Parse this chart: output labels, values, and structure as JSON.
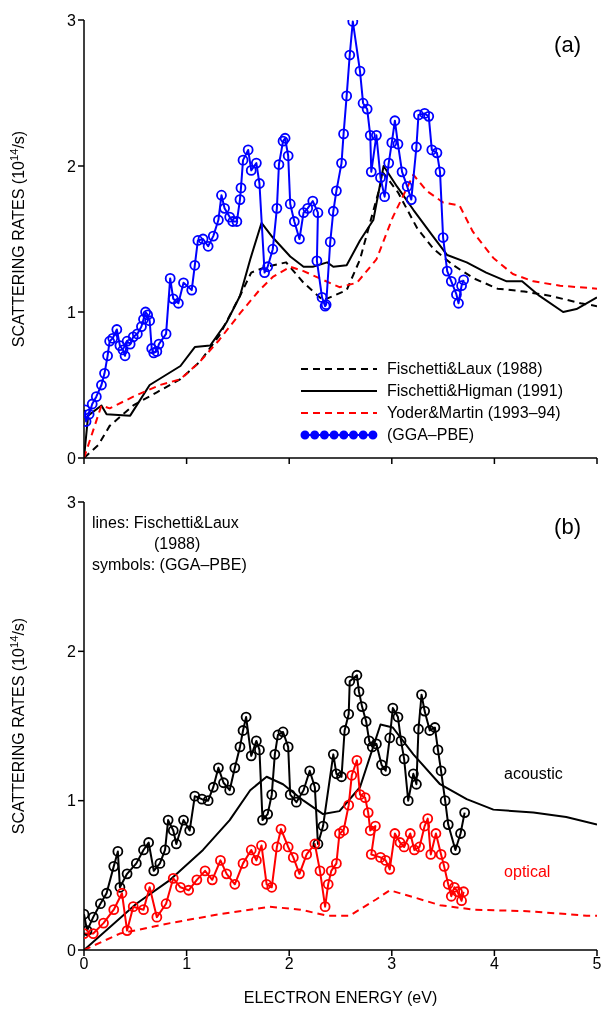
{
  "chart_data": [
    {
      "type": "line",
      "ylabel": "SCATTERING RATES (10$^{14}$/s)",
      "xlim": [
        0,
        5
      ],
      "xticks": [
        0,
        1,
        2,
        3,
        4,
        5
      ],
      "ylim": [
        0,
        3
      ],
      "yticks": [
        0,
        1,
        2,
        3
      ],
      "tick_labels": "y",
      "legend": "bottom right",
      "annotations": [
        "(a)"
      ],
      "series": [
        {
          "name": "Fischetti&Laux (1988)",
          "color": "#000000",
          "line_style": "dashed",
          "marker": "none",
          "x": [
            0,
            0.14,
            0.25,
            0.48,
            0.71,
            0.94,
            1.13,
            1.32,
            1.52,
            1.63,
            1.78,
            1.97,
            2.14,
            2.33,
            2.56,
            2.69,
            2.85,
            2.92,
            3.06,
            3.25,
            3.41,
            3.6,
            3.8,
            4.03,
            4.29,
            4.55,
            4.84,
            5.0
          ],
          "values": [
            0,
            0.09,
            0.22,
            0.36,
            0.45,
            0.54,
            0.66,
            0.84,
            1.11,
            1.27,
            1.31,
            1.34,
            1.2,
            1.08,
            1.15,
            1.36,
            1.77,
            1.95,
            1.82,
            1.57,
            1.43,
            1.32,
            1.23,
            1.16,
            1.14,
            1.11,
            1.06,
            1.04
          ]
        },
        {
          "name": "Fischetti&Higman (1991)",
          "color": "#000000",
          "line_style": "solid",
          "marker": "none",
          "x": [
            0,
            0.04,
            0.17,
            0.22,
            0.45,
            0.64,
            0.94,
            1.08,
            1.23,
            1.39,
            1.52,
            1.62,
            1.73,
            1.84,
            2.01,
            2.14,
            2.23,
            2.37,
            2.43,
            2.56,
            2.69,
            2.82,
            2.92,
            3.05,
            3.21,
            3.4,
            3.54,
            3.73,
            3.92,
            4.12,
            4.27,
            4.44,
            4.67,
            4.8,
            5.0
          ],
          "values": [
            0,
            0.29,
            0.36,
            0.3,
            0.29,
            0.5,
            0.63,
            0.76,
            0.77,
            0.93,
            1.11,
            1.36,
            1.61,
            1.51,
            1.38,
            1.31,
            1.31,
            1.34,
            1.31,
            1.32,
            1.49,
            1.63,
            2.0,
            1.86,
            1.7,
            1.52,
            1.39,
            1.34,
            1.27,
            1.21,
            1.21,
            1.11,
            1.0,
            1.02,
            1.1
          ]
        },
        {
          "name": "Yoder&Martin (1993–94)",
          "color": "#ff0000",
          "line_style": "dashed",
          "marker": "none",
          "x": [
            0,
            0.17,
            0.25,
            0.51,
            0.74,
            0.94,
            1.13,
            1.32,
            1.52,
            1.71,
            1.84,
            2.01,
            2.14,
            2.33,
            2.49,
            2.66,
            2.85,
            3.01,
            3.21,
            3.34,
            3.5,
            3.66,
            3.79,
            3.99,
            4.18,
            4.38,
            4.64,
            5.0
          ],
          "values": [
            0,
            0.36,
            0.34,
            0.43,
            0.5,
            0.54,
            0.66,
            0.81,
            0.99,
            1.15,
            1.24,
            1.31,
            1.28,
            1.22,
            1.17,
            1.2,
            1.36,
            1.65,
            1.94,
            1.83,
            1.75,
            1.73,
            1.55,
            1.37,
            1.26,
            1.21,
            1.18,
            1.16
          ]
        },
        {
          "name": "(GGA–PBE)",
          "color": "#0000ff",
          "line_style": "solid",
          "marker": "circle",
          "x": [
            0.01,
            0.02,
            0.05,
            0.08,
            0.12,
            0.17,
            0.2,
            0.23,
            0.25,
            0.28,
            0.32,
            0.35,
            0.38,
            0.4,
            0.42,
            0.45,
            0.48,
            0.52,
            0.56,
            0.58,
            0.6,
            0.62,
            0.64,
            0.66,
            0.68,
            0.71,
            0.73,
            0.8,
            0.84,
            0.87,
            0.92,
            0.97,
            1.05,
            1.08,
            1.11,
            1.16,
            1.21,
            1.26,
            1.31,
            1.34,
            1.37,
            1.42,
            1.45,
            1.49,
            1.52,
            1.53,
            1.55,
            1.6,
            1.63,
            1.68,
            1.71,
            1.76,
            1.79,
            1.84,
            1.88,
            1.9,
            1.94,
            1.96,
            1.99,
            2.01,
            2.05,
            2.1,
            2.14,
            2.18,
            2.23,
            2.28,
            2.27,
            2.32,
            2.35,
            2.36,
            2.4,
            2.43,
            2.46,
            2.51,
            2.53,
            2.56,
            2.59,
            2.62,
            2.69,
            2.72,
            2.76,
            2.79,
            2.8,
            2.85,
            2.89,
            2.93,
            2.97,
            3.0,
            3.03,
            3.06,
            3.1,
            3.15,
            3.19,
            3.24,
            3.26,
            3.32,
            3.36,
            3.39,
            3.44,
            3.47,
            3.5,
            3.54,
            3.58,
            3.63,
            3.65,
            3.68,
            3.7
          ],
          "values": [
            0.33,
            0.25,
            0.3,
            0.37,
            0.42,
            0.5,
            0.58,
            0.7,
            0.8,
            0.82,
            0.88,
            0.77,
            0.74,
            0.7,
            0.8,
            0.78,
            0.83,
            0.85,
            0.9,
            0.95,
            1.0,
            0.98,
            0.94,
            0.75,
            0.72,
            0.73,
            0.78,
            0.85,
            1.23,
            1.09,
            1.06,
            1.2,
            1.15,
            1.32,
            1.49,
            1.5,
            1.45,
            1.52,
            1.63,
            1.8,
            1.71,
            1.65,
            1.62,
            1.62,
            1.77,
            1.85,
            2.04,
            2.11,
            1.97,
            2.02,
            1.88,
            1.27,
            1.31,
            1.43,
            1.71,
            2.01,
            2.17,
            2.19,
            2.07,
            1.74,
            1.62,
            1.5,
            1.68,
            1.71,
            1.76,
            1.68,
            1.35,
            1.1,
            1.04,
            1.05,
            1.48,
            1.69,
            1.83,
            2.02,
            2.22,
            2.48,
            2.76,
            2.99,
            2.65,
            2.43,
            2.39,
            2.21,
            1.96,
            2.21,
            1.92,
            1.79,
            2.02,
            2.16,
            2.31,
            2.15,
            1.96,
            1.86,
            1.77,
            2.13,
            2.35,
            2.36,
            2.34,
            2.11,
            2.09,
            1.96,
            1.51,
            1.28,
            1.21,
            1.12,
            1.06,
            1.18,
            1.22
          ]
        }
      ]
    },
    {
      "type": "line",
      "xlabel": "ELECTRON ENERGY (eV)",
      "ylabel": "SCATTERING RATES (10$^{14}$/s)",
      "xlim": [
        0,
        5
      ],
      "xticks": [
        0,
        1,
        2,
        3,
        4,
        5
      ],
      "ylim": [
        0,
        3
      ],
      "yticks": [
        0,
        1,
        2,
        3
      ],
      "legend": false,
      "annotations": [
        "(b)",
        "lines: Fischetti&Laux (1988)",
        "symbols: (GGA–PBE)"
      ],
      "series": [
        {
          "name": "acoustic",
          "color": "#000000",
          "line_style": "solid",
          "marker": "none",
          "x": [
            0,
            0.51,
            0.84,
            1.16,
            1.42,
            1.62,
            1.78,
            1.94,
            2.14,
            2.33,
            2.49,
            2.69,
            2.89,
            3.01,
            3.21,
            3.47,
            3.73,
            3.99,
            4.38,
            4.7,
            5.0
          ],
          "values": [
            0,
            0.31,
            0.47,
            0.67,
            0.87,
            1.07,
            1.16,
            1.11,
            1.0,
            0.91,
            0.93,
            1.09,
            1.51,
            1.49,
            1.31,
            1.11,
            1.01,
            0.94,
            0.92,
            0.89,
            0.84
          ]
        },
        {
          "name": "optical",
          "color": "#ff0000",
          "line_style": "dashed",
          "marker": "none",
          "x": [
            0,
            0.35,
            0.84,
            1.32,
            1.81,
            2.11,
            2.37,
            2.59,
            2.85,
            2.98,
            3.18,
            3.47,
            3.8,
            4.32,
            4.9,
            5.0
          ],
          "values": [
            0,
            0.11,
            0.18,
            0.24,
            0.29,
            0.27,
            0.23,
            0.23,
            0.34,
            0.4,
            0.36,
            0.3,
            0.27,
            0.26,
            0.23,
            0.23
          ]
        },
        {
          "color": "#000000",
          "line_style": "solid",
          "marker": "circle",
          "x": [
            0,
            0.03,
            0.09,
            0.16,
            0.22,
            0.29,
            0.33,
            0.35,
            0.42,
            0.51,
            0.58,
            0.63,
            0.68,
            0.74,
            0.79,
            0.82,
            0.87,
            0.9,
            0.97,
            1.03,
            1.08,
            1.15,
            1.21,
            1.26,
            1.31,
            1.36,
            1.42,
            1.47,
            1.52,
            1.55,
            1.58,
            1.63,
            1.68,
            1.71,
            1.74,
            1.79,
            1.83,
            1.86,
            1.89,
            1.94,
            1.99,
            2.01,
            2.07,
            2.14,
            2.2,
            2.25,
            2.28,
            2.33,
            2.43,
            2.46,
            2.51,
            2.54,
            2.58,
            2.59,
            2.66,
            2.68,
            2.71,
            2.75,
            2.78,
            2.81,
            2.85,
            2.9,
            2.94,
            2.98,
            3.01,
            3.06,
            3.09,
            3.12,
            3.16,
            3.21,
            3.24,
            3.26,
            3.29,
            3.32,
            3.37,
            3.42,
            3.45,
            3.48,
            3.52,
            3.55,
            3.62,
            3.67,
            3.71
          ],
          "values": [
            0.24,
            0.13,
            0.22,
            0.31,
            0.38,
            0.56,
            0.66,
            0.42,
            0.51,
            0.58,
            0.67,
            0.72,
            0.53,
            0.58,
            0.67,
            0.87,
            0.8,
            0.71,
            0.87,
            0.8,
            1.03,
            1.01,
            1.0,
            1.09,
            1.22,
            1.12,
            1.07,
            1.22,
            1.36,
            1.47,
            1.56,
            1.3,
            1.4,
            1.34,
            0.87,
            0.91,
            1.04,
            1.31,
            1.44,
            1.46,
            1.36,
            1.04,
            0.99,
            1.07,
            1.2,
            1.09,
            0.71,
            0.83,
            1.31,
            1.18,
            1.16,
            1.47,
            1.58,
            1.8,
            1.84,
            1.73,
            1.63,
            1.53,
            1.4,
            1.36,
            1.38,
            1.24,
            1.2,
            1.42,
            1.62,
            1.56,
            1.4,
            1.28,
            1.0,
            1.18,
            1.11,
            1.48,
            1.71,
            1.6,
            1.47,
            1.49,
            1.34,
            1.2,
            1.0,
            0.84,
            0.67,
            0.78,
            0.92
          ]
        },
        {
          "color": "#ff0000",
          "line_style": "solid",
          "marker": "circle",
          "x": [
            0,
            0.09,
            0.19,
            0.29,
            0.37,
            0.42,
            0.48,
            0.58,
            0.64,
            0.71,
            0.8,
            0.87,
            0.94,
            1.02,
            1.1,
            1.18,
            1.25,
            1.33,
            1.39,
            1.47,
            1.55,
            1.63,
            1.68,
            1.73,
            1.78,
            1.83,
            1.88,
            1.92,
            1.99,
            2.04,
            2.1,
            2.17,
            2.25,
            2.3,
            2.35,
            2.38,
            2.41,
            2.46,
            2.49,
            2.53,
            2.58,
            2.61,
            2.66,
            2.69,
            2.74,
            2.77,
            2.79,
            2.84,
            2.8,
            2.89,
            2.94,
            2.98,
            3.03,
            3.08,
            3.12,
            3.18,
            3.22,
            3.27,
            3.32,
            3.35,
            3.38,
            3.43,
            3.48,
            3.51,
            3.55,
            3.58,
            3.61,
            3.64,
            3.68,
            3.7
          ],
          "values": [
            0.11,
            0.11,
            0.18,
            0.27,
            0.38,
            0.13,
            0.29,
            0.27,
            0.42,
            0.22,
            0.31,
            0.48,
            0.42,
            0.4,
            0.47,
            0.53,
            0.47,
            0.6,
            0.51,
            0.44,
            0.58,
            0.67,
            0.6,
            0.7,
            0.44,
            0.42,
            0.69,
            0.81,
            0.69,
            0.62,
            0.51,
            0.64,
            0.71,
            0.53,
            0.29,
            0.44,
            0.53,
            0.58,
            0.78,
            0.8,
            0.97,
            1.17,
            1.27,
            1.04,
            1.02,
            0.92,
            0.8,
            0.83,
            0.64,
            0.62,
            0.6,
            0.54,
            0.78,
            0.72,
            0.69,
            0.78,
            0.67,
            0.69,
            0.83,
            0.88,
            0.64,
            0.78,
            0.64,
            0.56,
            0.44,
            0.36,
            0.42,
            0.39,
            0.33,
            0.39
          ]
        }
      ]
    }
  ]
}
